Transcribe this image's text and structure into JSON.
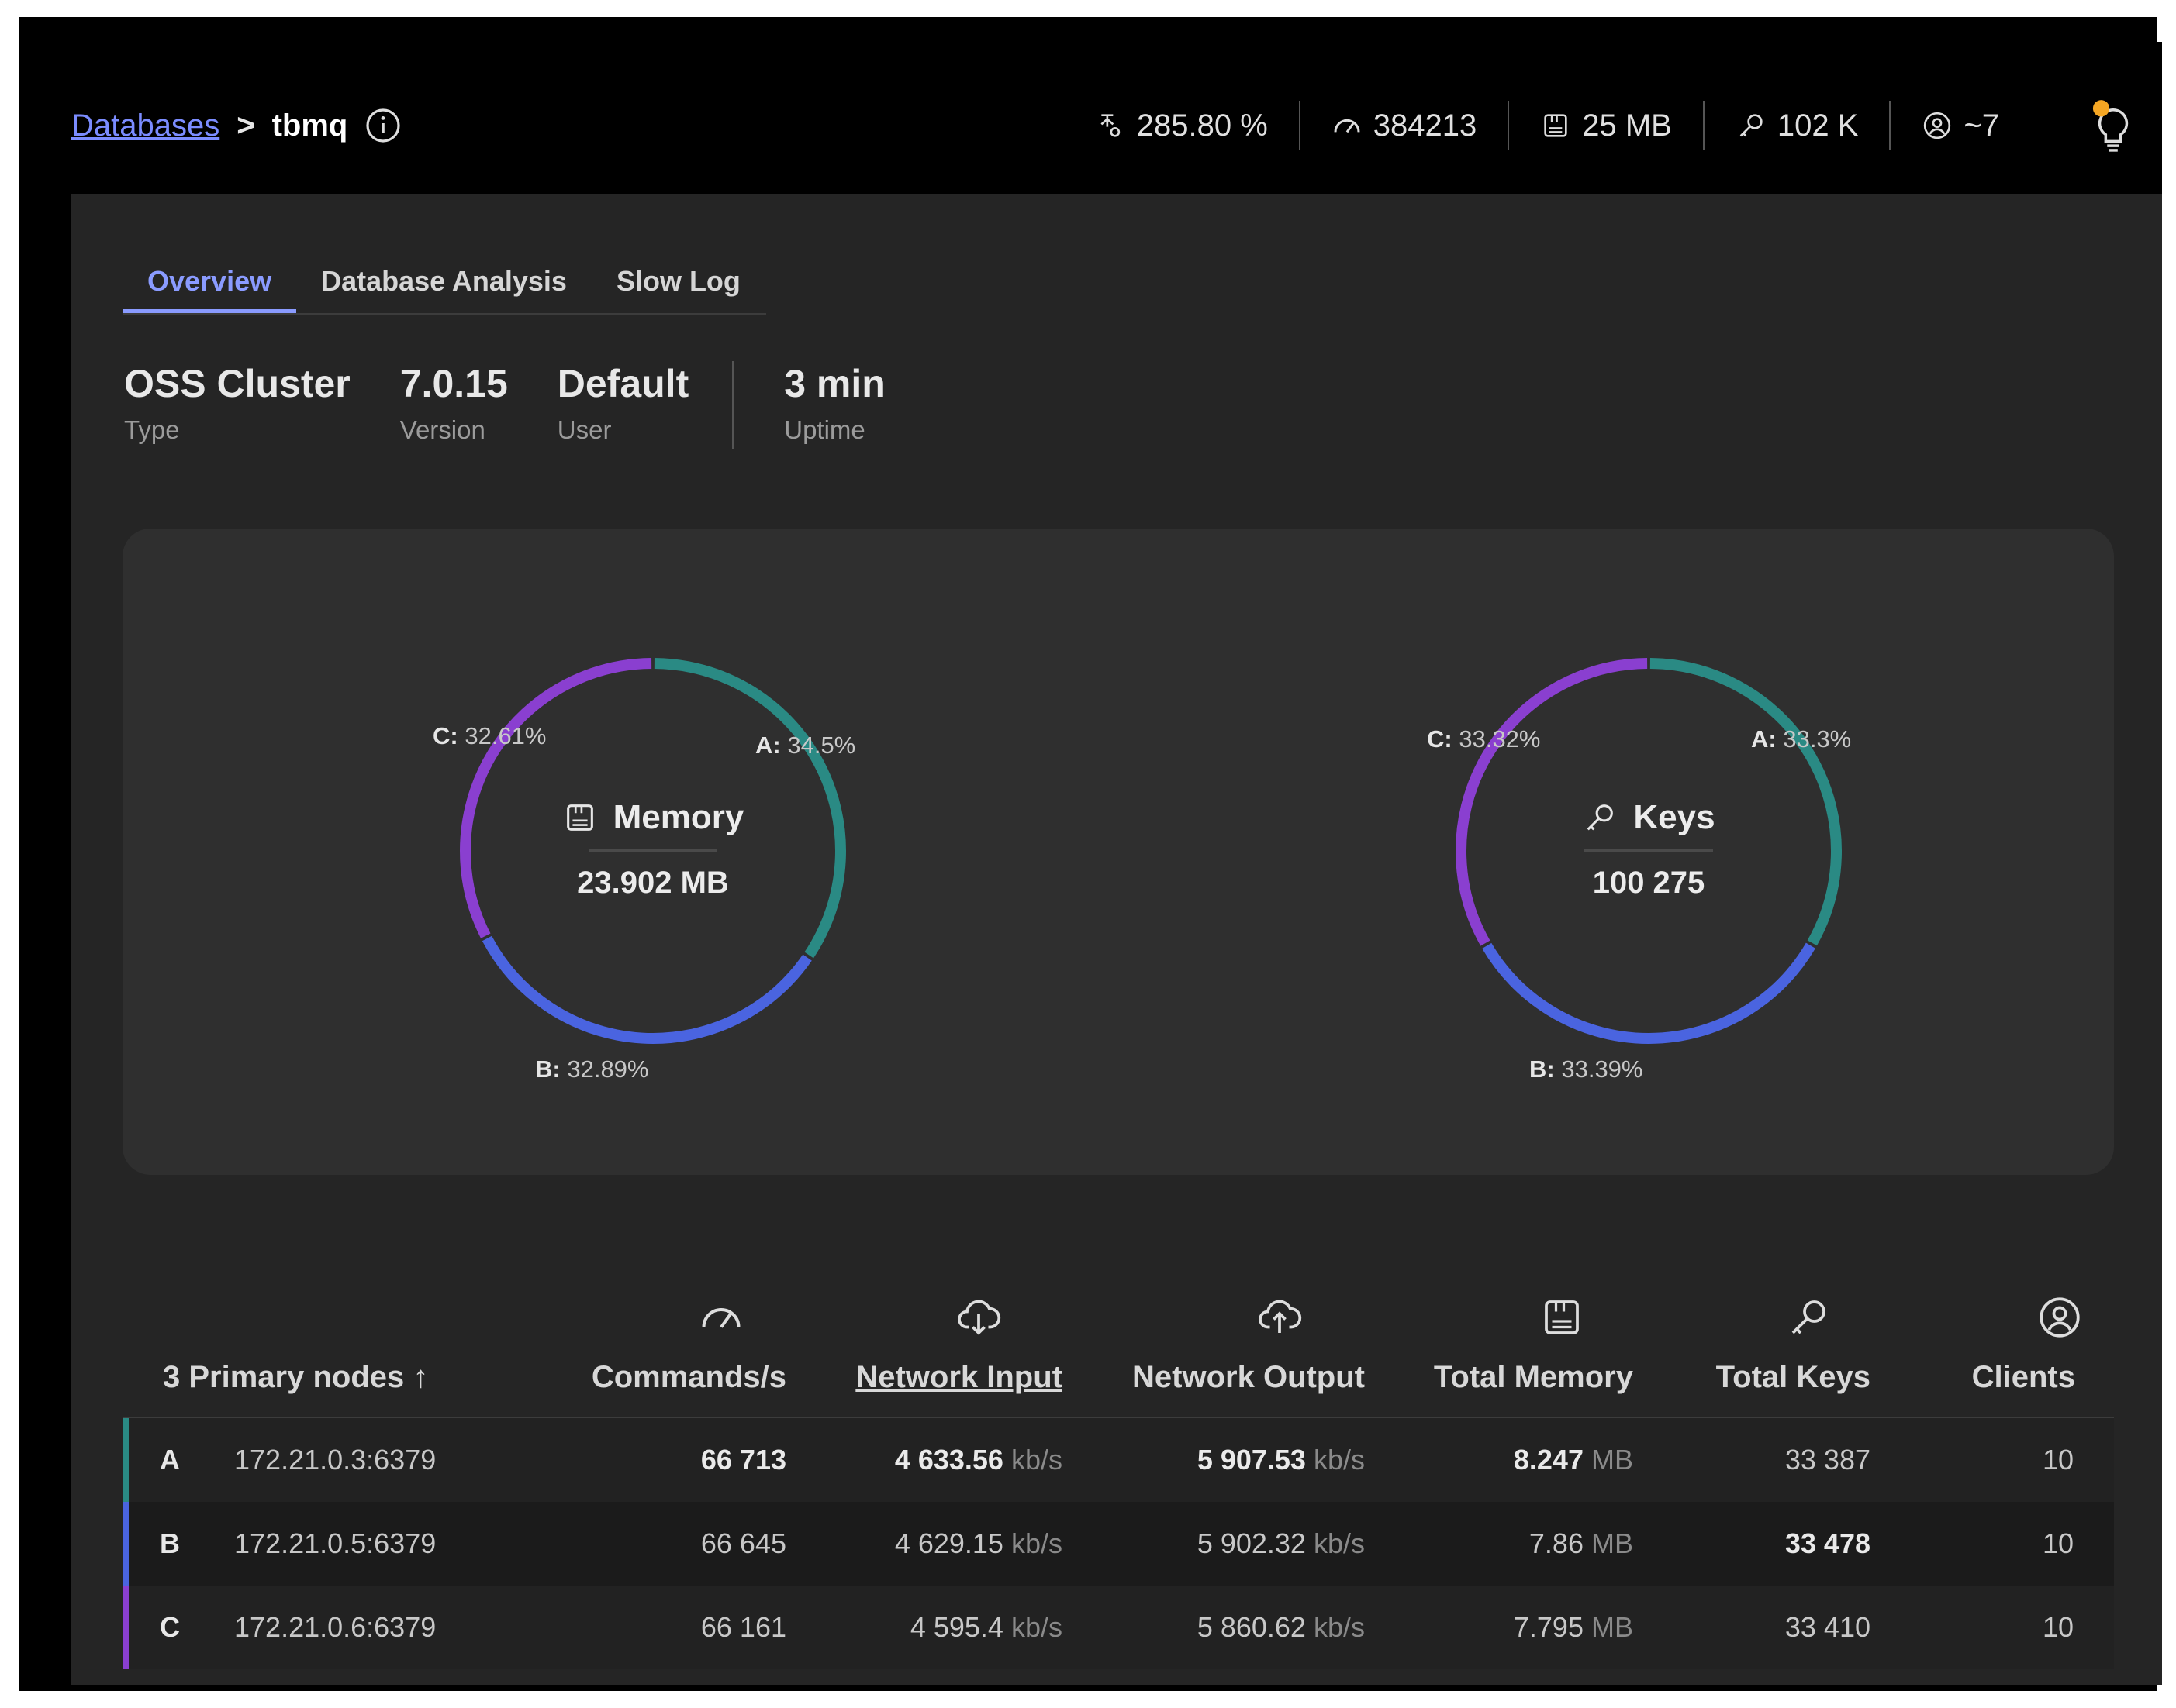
{
  "header": {
    "breadcrumb_link": "Databases",
    "breadcrumb_sep": ">",
    "db_name": "tbmq",
    "metrics": {
      "cpu": "285.80 %",
      "commands": "384213",
      "memory": "25 MB",
      "keys": "102 K",
      "clients": "~7"
    }
  },
  "tabs": [
    "Overview",
    "Database Analysis",
    "Slow Log"
  ],
  "db_info": {
    "type": {
      "value": "OSS Cluster",
      "label": "Type"
    },
    "version": {
      "value": "7.0.15",
      "label": "Version"
    },
    "user": {
      "value": "Default",
      "label": "User"
    },
    "uptime": {
      "value": "3 min",
      "label": "Uptime"
    }
  },
  "colors": {
    "A": "#2a8a84",
    "B": "#4a64e0",
    "C": "#8a3fd0"
  },
  "charts": {
    "memory": {
      "title": "Memory",
      "value": "23.902 MB",
      "slices": [
        {
          "node": "A:",
          "pct_label": "34.5%",
          "pct": 34.5
        },
        {
          "node": "B:",
          "pct_label": "32.89%",
          "pct": 32.89
        },
        {
          "node": "C:",
          "pct_label": "32.61%",
          "pct": 32.61
        }
      ]
    },
    "keys": {
      "title": "Keys",
      "value": "100 275",
      "slices": [
        {
          "node": "A:",
          "pct_label": "33.3%",
          "pct": 33.3
        },
        {
          "node": "B:",
          "pct_label": "33.39%",
          "pct": 33.39
        },
        {
          "node": "C:",
          "pct_label": "33.32%",
          "pct": 33.32
        }
      ]
    }
  },
  "table": {
    "headers": {
      "nodes": "3 Primary nodes",
      "sort_arrow": "↑",
      "commands": "Commands/s",
      "net_in": "Network Input",
      "net_out": "Network Output",
      "memory": "Total Memory",
      "keys": "Total Keys",
      "clients": "Clients"
    },
    "unit_kbs": "kb/s",
    "unit_mb": "MB",
    "rows": [
      {
        "letter": "A",
        "host": "172.21.0.3:6379",
        "commands": "66 713",
        "net_in": "4 633.56",
        "net_out": "5 907.53",
        "memory": "8.247",
        "keys": "33 387",
        "clients": "10"
      },
      {
        "letter": "B",
        "host": "172.21.0.5:6379",
        "commands": "66 645",
        "net_in": "4 629.15",
        "net_out": "5 902.32",
        "memory": "7.86",
        "keys": "33 478",
        "clients": "10"
      },
      {
        "letter": "C",
        "host": "172.21.0.6:6379",
        "commands": "66 161",
        "net_in": "4 595.4",
        "net_out": "5 860.62",
        "memory": "7.795",
        "keys": "33 410",
        "clients": "10"
      }
    ]
  }
}
